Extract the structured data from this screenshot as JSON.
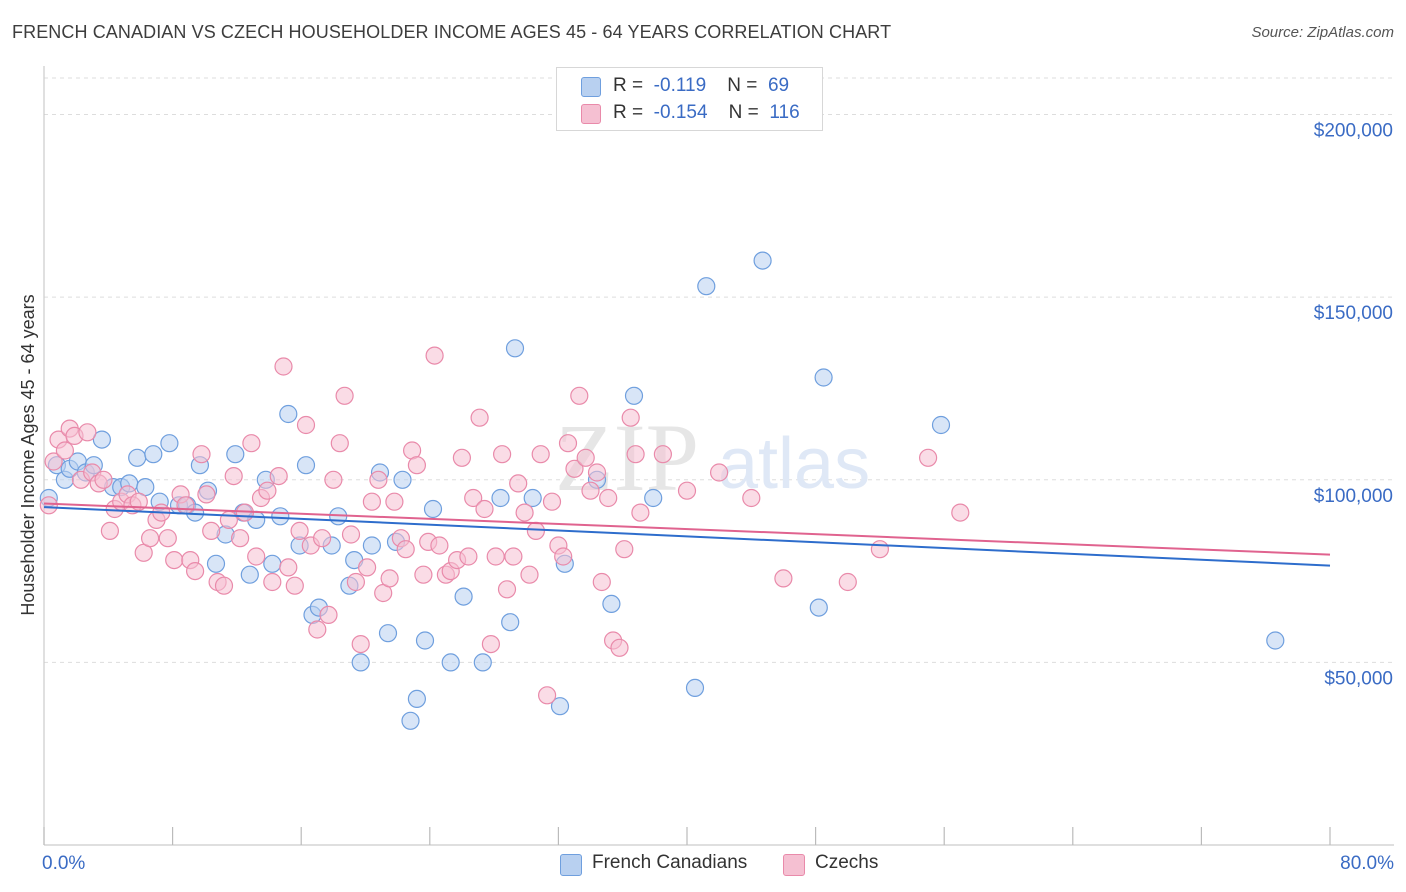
{
  "title": "FRENCH CANADIAN VS CZECH HOUSEHOLDER INCOME AGES 45 - 64 YEARS CORRELATION CHART",
  "source": "Source: ZipAtlas.com",
  "legend": {
    "rows": [
      {
        "r_label": "R =",
        "r_value": "-0.119",
        "n_label": "N =",
        "n_value": "69"
      },
      {
        "r_label": "R =",
        "r_value": "-0.154",
        "n_label": "N =",
        "n_value": "116"
      }
    ]
  },
  "watermark": {
    "zip": "ZIP",
    "atlas": "atlas"
  },
  "colors": {
    "blue_fill": "#b8d0f0",
    "blue_stroke": "#6f9fde",
    "blue_line": "#2e6dcc",
    "pink_fill": "#f5c0d2",
    "pink_stroke": "#e98aaa",
    "pink_line": "#e0638f",
    "axis_label": "#3a6bc4",
    "grid": "#dddddd"
  },
  "chart_data": {
    "type": "scatter",
    "title": "FRENCH CANADIAN VS CZECH HOUSEHOLDER INCOME AGES 45 - 64 YEARS CORRELATION CHART",
    "xlabel": "",
    "ylabel": "Householder Income Ages 45 - 64 years",
    "xlim": [
      0,
      80
    ],
    "ylim": [
      0,
      210000
    ],
    "x_tick_labels": [
      "0.0%",
      "80.0%"
    ],
    "y_ticks": [
      50000,
      100000,
      150000,
      200000
    ],
    "y_tick_labels": [
      "$50,000",
      "$100,000",
      "$150,000",
      "$200,000"
    ],
    "grid": "horizontal dashed",
    "legend_position": "top-center and bottom",
    "series": [
      {
        "name": "French Canadians",
        "color": "#6f9fde",
        "trend": {
          "x0": 0,
          "y0": 92500,
          "x1": 80,
          "y1": 76500
        },
        "points": [
          [
            0.3,
            95000
          ],
          [
            0.8,
            104000
          ],
          [
            1.3,
            100000
          ],
          [
            1.6,
            103000
          ],
          [
            2.1,
            105000
          ],
          [
            2.6,
            102000
          ],
          [
            3.1,
            104000
          ],
          [
            3.6,
            111000
          ],
          [
            4.3,
            98000
          ],
          [
            4.8,
            98000
          ],
          [
            5.3,
            99000
          ],
          [
            5.8,
            106000
          ],
          [
            6.3,
            98000
          ],
          [
            6.8,
            107000
          ],
          [
            7.2,
            94000
          ],
          [
            7.8,
            110000
          ],
          [
            8.4,
            93000
          ],
          [
            8.9,
            93000
          ],
          [
            9.4,
            91000
          ],
          [
            9.7,
            104000
          ],
          [
            10.2,
            97000
          ],
          [
            10.7,
            77000
          ],
          [
            11.3,
            85000
          ],
          [
            11.9,
            107000
          ],
          [
            12.4,
            91000
          ],
          [
            12.8,
            74000
          ],
          [
            13.2,
            89000
          ],
          [
            13.8,
            100000
          ],
          [
            14.2,
            77000
          ],
          [
            14.7,
            90000
          ],
          [
            15.2,
            118000
          ],
          [
            15.9,
            82000
          ],
          [
            16.3,
            104000
          ],
          [
            16.7,
            63000
          ],
          [
            17.1,
            65000
          ],
          [
            17.9,
            82000
          ],
          [
            18.3,
            90000
          ],
          [
            19.0,
            71000
          ],
          [
            19.3,
            78000
          ],
          [
            19.7,
            50000
          ],
          [
            20.4,
            82000
          ],
          [
            20.9,
            102000
          ],
          [
            21.4,
            58000
          ],
          [
            21.9,
            83000
          ],
          [
            22.3,
            100000
          ],
          [
            22.8,
            34000
          ],
          [
            23.2,
            40000
          ],
          [
            23.7,
            56000
          ],
          [
            24.2,
            92000
          ],
          [
            25.3,
            50000
          ],
          [
            26.1,
            68000
          ],
          [
            27.3,
            50000
          ],
          [
            28.4,
            95000
          ],
          [
            29.0,
            61000
          ],
          [
            29.3,
            136000
          ],
          [
            30.4,
            95000
          ],
          [
            32.1,
            38000
          ],
          [
            32.4,
            77000
          ],
          [
            34.4,
            100000
          ],
          [
            35.3,
            66000
          ],
          [
            36.7,
            123000
          ],
          [
            37.9,
            95000
          ],
          [
            40.5,
            43000
          ],
          [
            41.2,
            153000
          ],
          [
            44.7,
            160000
          ],
          [
            48.2,
            65000
          ],
          [
            48.5,
            128000
          ],
          [
            55.8,
            115000
          ],
          [
            76.6,
            56000
          ]
        ]
      },
      {
        "name": "Czechs",
        "color": "#e98aaa",
        "trend": {
          "x0": 0,
          "y0": 93500,
          "x1": 80,
          "y1": 79500
        },
        "points": [
          [
            0.3,
            93000
          ],
          [
            0.6,
            105000
          ],
          [
            0.9,
            111000
          ],
          [
            1.3,
            108000
          ],
          [
            1.6,
            114000
          ],
          [
            1.9,
            112000
          ],
          [
            2.3,
            100000
          ],
          [
            2.7,
            113000
          ],
          [
            3.0,
            102000
          ],
          [
            3.4,
            99000
          ],
          [
            3.7,
            100000
          ],
          [
            4.1,
            86000
          ],
          [
            4.4,
            92000
          ],
          [
            4.8,
            94000
          ],
          [
            5.2,
            96000
          ],
          [
            5.5,
            93000
          ],
          [
            5.9,
            94000
          ],
          [
            6.2,
            80000
          ],
          [
            6.6,
            84000
          ],
          [
            7.0,
            89000
          ],
          [
            7.3,
            91000
          ],
          [
            7.7,
            84000
          ],
          [
            8.1,
            78000
          ],
          [
            8.5,
            96000
          ],
          [
            8.8,
            93000
          ],
          [
            9.1,
            78000
          ],
          [
            9.4,
            75000
          ],
          [
            9.8,
            107000
          ],
          [
            10.1,
            96000
          ],
          [
            10.4,
            86000
          ],
          [
            10.8,
            72000
          ],
          [
            11.2,
            71000
          ],
          [
            11.5,
            89000
          ],
          [
            11.8,
            101000
          ],
          [
            12.2,
            84000
          ],
          [
            12.5,
            91000
          ],
          [
            12.9,
            110000
          ],
          [
            13.2,
            79000
          ],
          [
            13.5,
            95000
          ],
          [
            13.9,
            97000
          ],
          [
            14.2,
            72000
          ],
          [
            14.6,
            101000
          ],
          [
            14.9,
            131000
          ],
          [
            15.2,
            76000
          ],
          [
            15.6,
            71000
          ],
          [
            15.9,
            86000
          ],
          [
            16.3,
            115000
          ],
          [
            16.6,
            82000
          ],
          [
            17.0,
            59000
          ],
          [
            17.3,
            84000
          ],
          [
            17.7,
            63000
          ],
          [
            18.0,
            100000
          ],
          [
            18.4,
            110000
          ],
          [
            18.7,
            123000
          ],
          [
            19.1,
            85000
          ],
          [
            19.4,
            72000
          ],
          [
            19.7,
            55000
          ],
          [
            20.1,
            76000
          ],
          [
            20.4,
            94000
          ],
          [
            20.8,
            100000
          ],
          [
            21.1,
            69000
          ],
          [
            21.5,
            73000
          ],
          [
            21.8,
            94000
          ],
          [
            22.2,
            84000
          ],
          [
            22.5,
            81000
          ],
          [
            22.9,
            108000
          ],
          [
            23.2,
            104000
          ],
          [
            23.6,
            74000
          ],
          [
            23.9,
            83000
          ],
          [
            24.3,
            134000
          ],
          [
            24.6,
            82000
          ],
          [
            25.0,
            74000
          ],
          [
            25.3,
            75000
          ],
          [
            25.7,
            78000
          ],
          [
            26.0,
            106000
          ],
          [
            26.4,
            79000
          ],
          [
            26.7,
            95000
          ],
          [
            27.1,
            117000
          ],
          [
            27.4,
            92000
          ],
          [
            27.8,
            55000
          ],
          [
            28.1,
            79000
          ],
          [
            28.5,
            107000
          ],
          [
            28.8,
            70000
          ],
          [
            29.2,
            79000
          ],
          [
            29.5,
            99000
          ],
          [
            29.9,
            91000
          ],
          [
            30.2,
            74000
          ],
          [
            30.6,
            86000
          ],
          [
            30.9,
            107000
          ],
          [
            31.3,
            41000
          ],
          [
            31.6,
            94000
          ],
          [
            32.0,
            82000
          ],
          [
            32.3,
            79000
          ],
          [
            32.6,
            110000
          ],
          [
            33.0,
            103000
          ],
          [
            33.3,
            123000
          ],
          [
            33.7,
            106000
          ],
          [
            34.0,
            97000
          ],
          [
            34.4,
            102000
          ],
          [
            34.7,
            72000
          ],
          [
            35.1,
            95000
          ],
          [
            35.4,
            56000
          ],
          [
            35.8,
            54000
          ],
          [
            36.1,
            81000
          ],
          [
            36.5,
            117000
          ],
          [
            36.8,
            107000
          ],
          [
            37.1,
            91000
          ],
          [
            38.5,
            107000
          ],
          [
            40.0,
            97000
          ],
          [
            42.0,
            102000
          ],
          [
            44.0,
            95000
          ],
          [
            46.0,
            73000
          ],
          [
            50.0,
            72000
          ],
          [
            52.0,
            81000
          ],
          [
            55.0,
            106000
          ],
          [
            57.0,
            91000
          ]
        ]
      }
    ]
  },
  "bottom_legend": [
    {
      "label": "French Canadians"
    },
    {
      "label": "Czechs"
    }
  ]
}
